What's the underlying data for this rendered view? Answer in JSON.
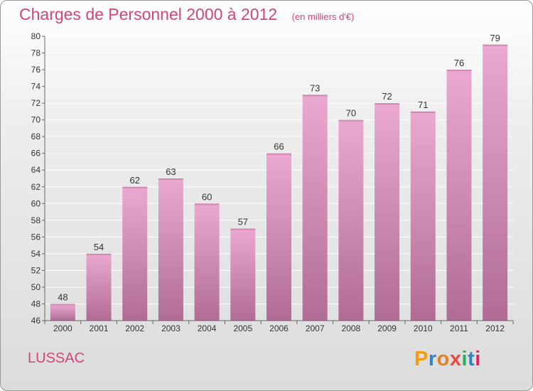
{
  "header": {
    "title": "Charges de Personnel 2000 à 2012",
    "unit_note": "(en milliers d'€)"
  },
  "footer": {
    "city": "LUSSAC",
    "logo": "Proxiti",
    "logo_colors": [
      "#f39c12",
      "#2e86c1",
      "#e67e22",
      "#e74c3c",
      "#27ae60",
      "#2e86c1",
      "#e91e63"
    ]
  },
  "colors": {
    "bar_light": "#eba9d1",
    "bar_dark": "#b06c94",
    "title": "#d1457c",
    "grid": "#ffffff"
  },
  "chart_data": {
    "type": "bar",
    "categories": [
      "2000",
      "2001",
      "2002",
      "2003",
      "2004",
      "2005",
      "2006",
      "2007",
      "2008",
      "2009",
      "2010",
      "2011",
      "2012"
    ],
    "values": [
      48,
      54,
      62,
      63,
      60,
      57,
      66,
      73,
      70,
      72,
      71,
      76,
      79
    ],
    "ylim": [
      46,
      80
    ],
    "yticks": [
      46,
      48,
      50,
      52,
      54,
      56,
      58,
      60,
      62,
      64,
      66,
      68,
      70,
      72,
      74,
      76,
      78,
      80
    ],
    "grid": true,
    "data_labels": true
  }
}
